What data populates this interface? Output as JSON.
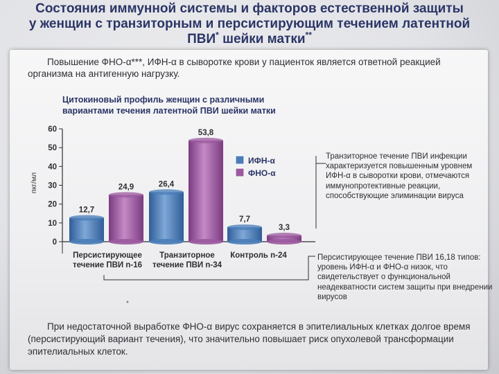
{
  "title": {
    "line1": "Состояния иммунной системы и факторов естественной защиты",
    "line2": "у женщин с транзиторным и персистирующим течением латентной",
    "line3_main": "ПВИ",
    "line3_sup1": "*",
    "line3_rest": " шейки матки",
    "line3_sup2": "**"
  },
  "intro_text": "Повышение ФНО-α***, ИФН-α в сыворотке крови у пациенток является ответной реакцией организма на антигенную нагрузку.",
  "notes": {
    "transient": "Транзиторное течение ПВИ инфекции характеризуется повышенным уровнем ИФН-α в сыворотки крови, отмечаются иммунопротективные реакции, способствующие элиминации вируса",
    "persistent": "Персистирующее течение ПВИ 16,18 типов: уровень ИФН-α и ФНО-α низок, что свидетельствует о функциональной неадекватности систем защиты при внедрении вирусов"
  },
  "bottom_text": "При недостаточной выработке ФНО-α вирус сохраняется в эпителиальных клетках долгое время (персистирующий вариант течения), что значительно повышает риск опухолевой трансформации эпителиальных клеток.",
  "asterisk_mark": "*",
  "colors": {
    "title": "#2b3566",
    "ifn": "#4a7db8",
    "tnf": "#9b5a9f"
  },
  "chart_data": {
    "type": "bar",
    "title": "Цитокиновый профиль женщин с различными вариантами течения латентной ПВИ шейки матки",
    "ylabel": "пкг/мл",
    "ylim": [
      0,
      60
    ],
    "yticks": [
      "0",
      "10",
      "20",
      "30",
      "40",
      "50",
      "60"
    ],
    "categories": [
      [
        "Персистирующее",
        "течение ПВИ n-16"
      ],
      [
        "Транзиторное",
        "течение ПВИ n-34"
      ],
      [
        "Контроль n-24"
      ]
    ],
    "series": [
      {
        "name": "ИФН-α",
        "values": [
          12.7,
          26.4,
          7.7
        ],
        "labels": [
          "12,7",
          "26,4",
          "7,7"
        ],
        "color": "#4a7db8"
      },
      {
        "name": "ФНО-α",
        "values": [
          24.9,
          53.8,
          3.3
        ],
        "labels": [
          "24,9",
          "53,8",
          "3,3"
        ],
        "color": "#9b5a9f"
      }
    ],
    "legend": "right"
  }
}
